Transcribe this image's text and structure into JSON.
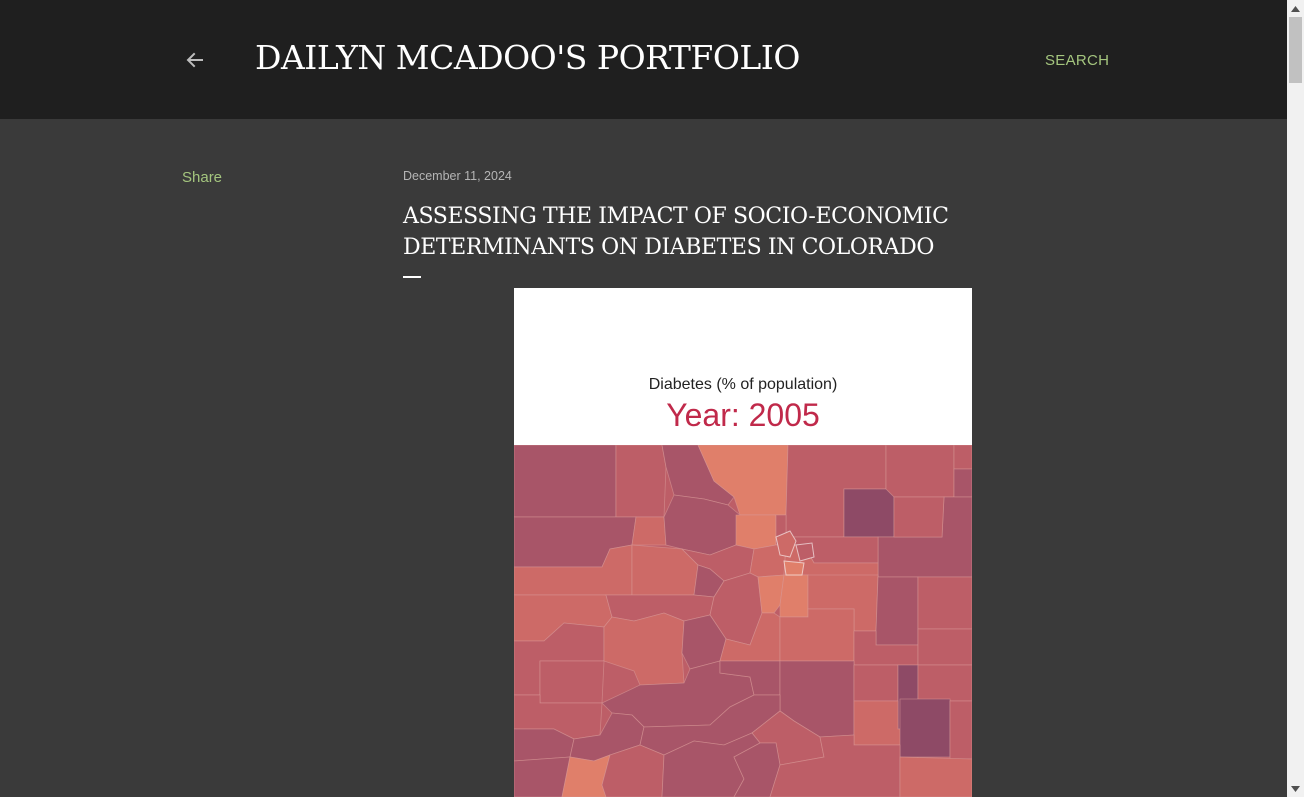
{
  "header": {
    "site_title": "DAILYN MCADOO'S PORTFOLIO",
    "search_label": "SEARCH",
    "back_icon": "arrow-left-icon"
  },
  "sidebar": {
    "share_label": "Share"
  },
  "post": {
    "date": "December 11, 2024",
    "title": "ASSESSING THE IMPACT OF SOCIO-ECONOMIC DETERMINANTS ON DIABETES IN COLORADO"
  },
  "figure": {
    "caption": "Diabetes (% of population)",
    "year": "Year: 2005",
    "map_type": "choropleth",
    "palette": [
      "#e07f6a",
      "#cd6a67",
      "#bd5e67",
      "#a85568",
      "#8e4a66"
    ]
  },
  "colors": {
    "header_bg": "#1f1f1f",
    "page_bg": "#3a3a3a",
    "accent": "#a4c57e",
    "year_red": "#c0294a"
  }
}
